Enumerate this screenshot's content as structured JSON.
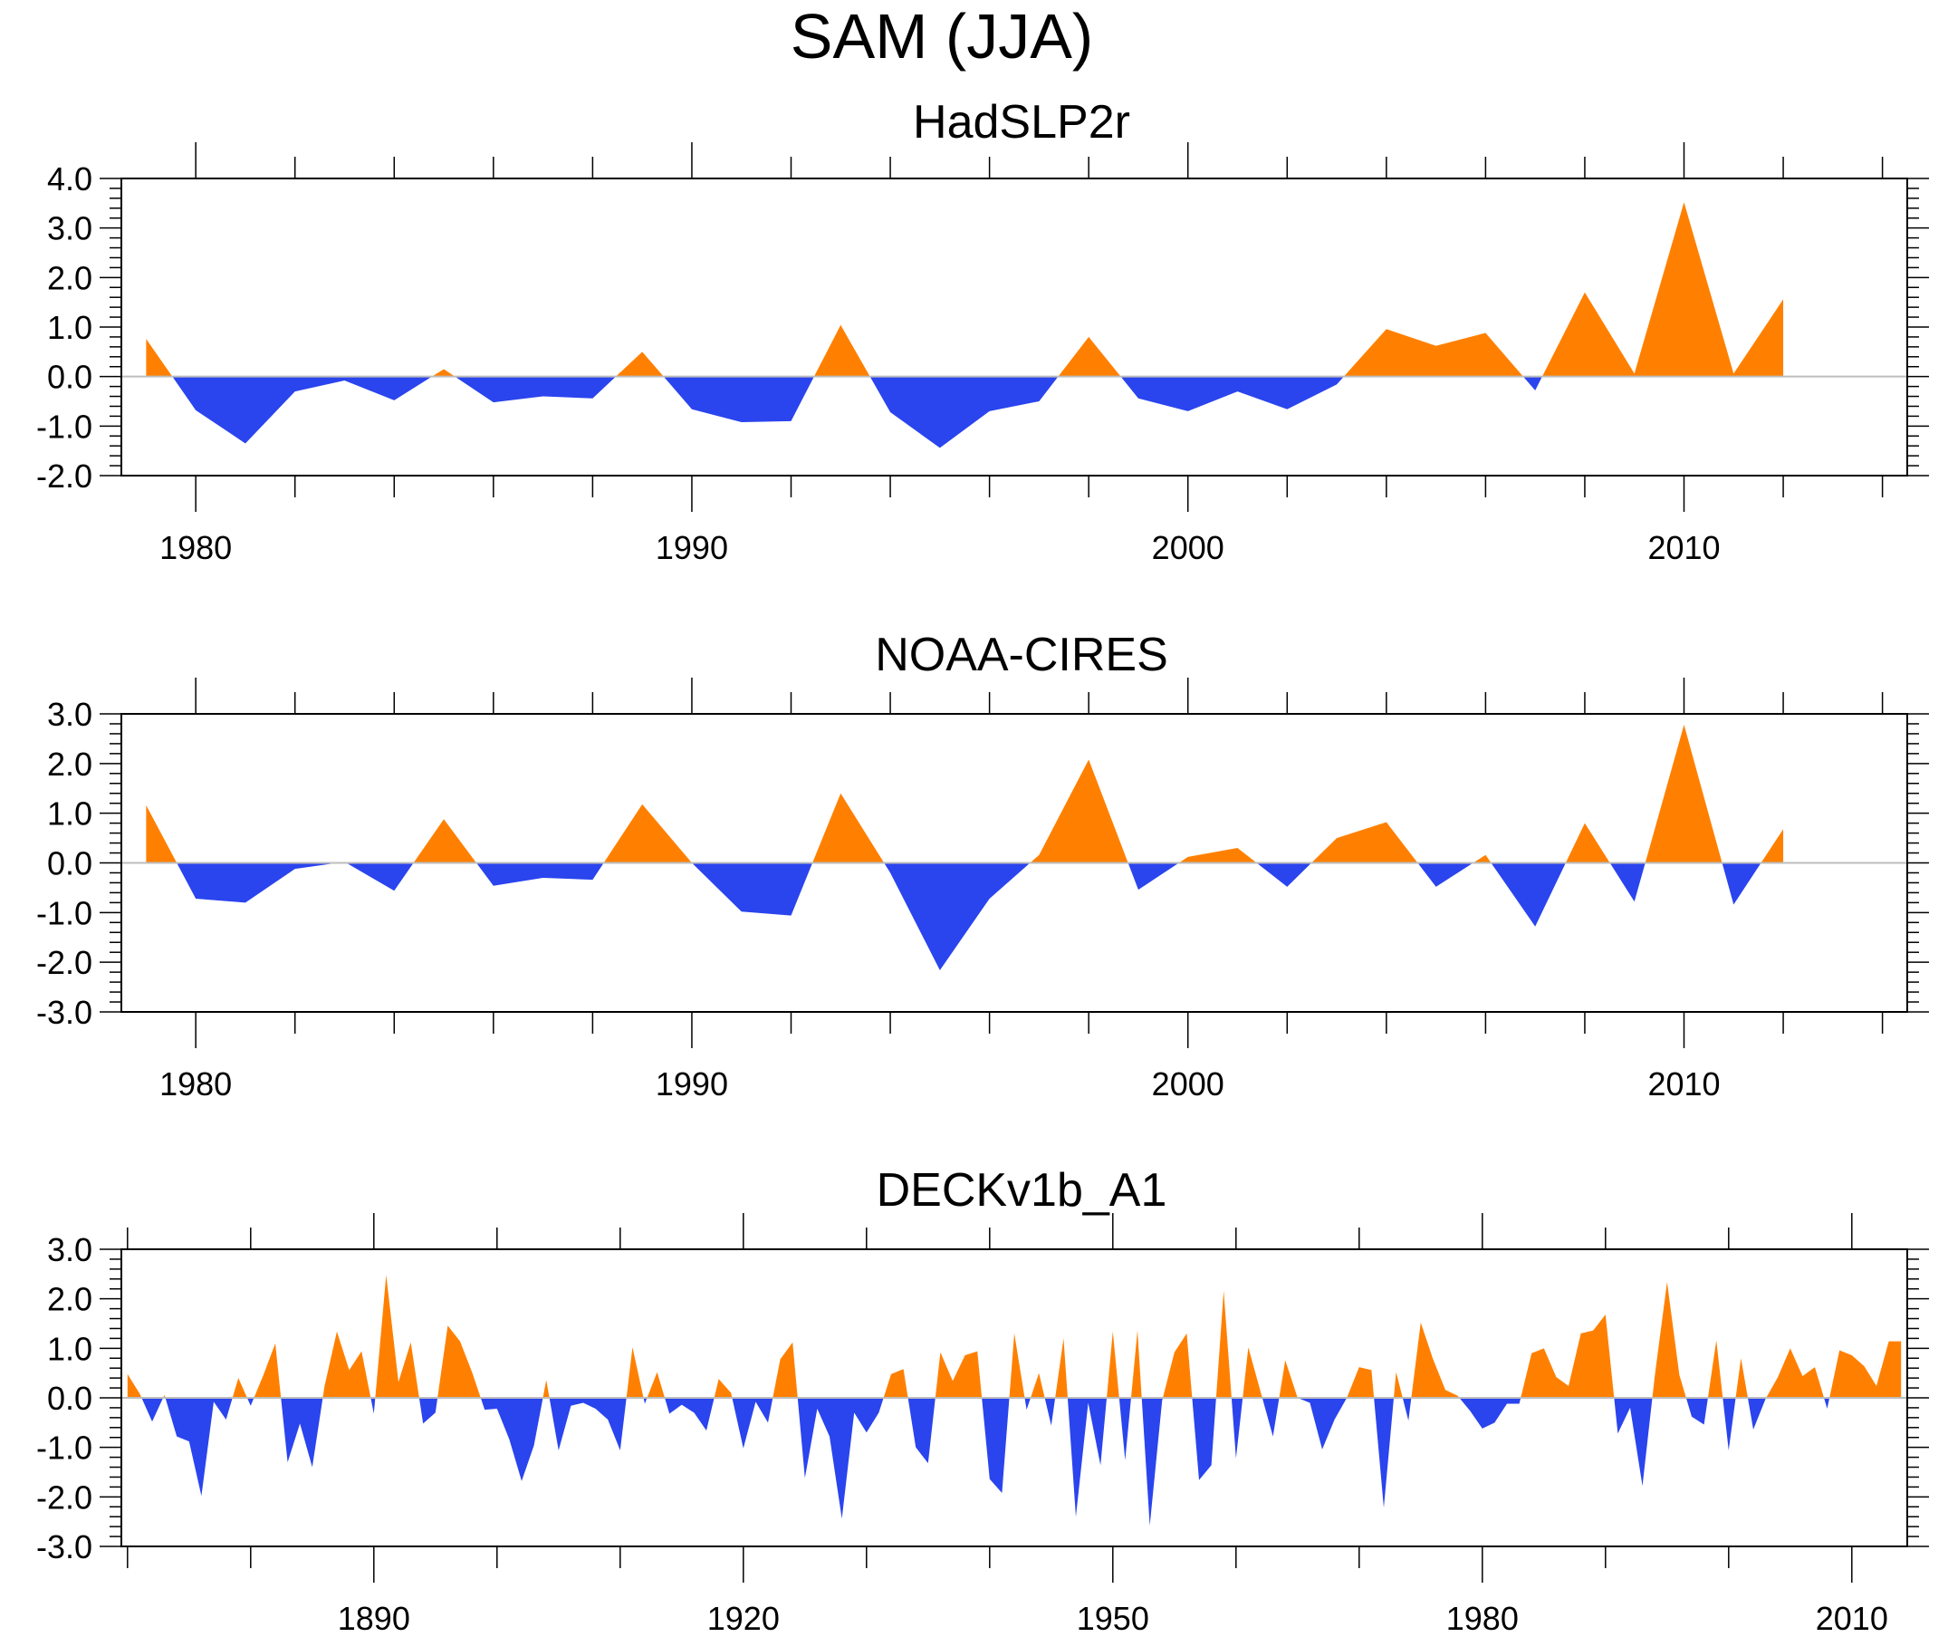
{
  "figure": {
    "title": "SAM (JJA)",
    "colors": {
      "positive": "#ff8000",
      "negative": "#2a44ee",
      "axis": "#000000",
      "zero_line": "#bdbdbd"
    }
  },
  "chart_data": [
    {
      "type": "area",
      "title": "HadSLP2r",
      "xlabel": "",
      "ylabel": "",
      "xlim": [
        1978.5,
        2014.5
      ],
      "ylim": [
        -2.0,
        4.0
      ],
      "xticks": [
        1980,
        1990,
        2000,
        2010
      ],
      "xtick_labels": [
        "1980",
        "1990",
        "2000",
        "2010"
      ],
      "yticks": [
        -2.0,
        -1.0,
        0.0,
        1.0,
        2.0,
        3.0,
        4.0
      ],
      "ytick_labels": [
        "-2.0",
        "-1.0",
        "0.0",
        "1.0",
        "2.0",
        "3.0",
        "4.0"
      ],
      "x_minor_step": 2,
      "y_minor_step": 0.2,
      "grid": false,
      "legend": "none",
      "x": [
        1979,
        1980,
        1981,
        1982,
        1983,
        1984,
        1985,
        1986,
        1987,
        1988,
        1989,
        1990,
        1991,
        1992,
        1993,
        1994,
        1995,
        1996,
        1997,
        1998,
        1999,
        2000,
        2001,
        2002,
        2003,
        2004,
        2005,
        2006,
        2007,
        2008,
        2009,
        2010,
        2011,
        2012
      ],
      "values": [
        0.76,
        -0.68,
        -1.35,
        -0.3,
        -0.08,
        -0.48,
        0.15,
        -0.52,
        -0.4,
        -0.44,
        0.5,
        -0.66,
        -0.92,
        -0.9,
        1.04,
        -0.72,
        -1.44,
        -0.7,
        -0.5,
        0.8,
        -0.44,
        -0.7,
        -0.3,
        -0.66,
        -0.16,
        0.96,
        0.62,
        0.88,
        -0.28,
        1.7,
        0.06,
        3.52,
        0.06,
        1.56
      ]
    },
    {
      "type": "area",
      "title": "NOAA-CIRES",
      "xlabel": "",
      "ylabel": "",
      "xlim": [
        1978.5,
        2014.5
      ],
      "ylim": [
        -3.0,
        3.0
      ],
      "xticks": [
        1980,
        1990,
        2000,
        2010
      ],
      "xtick_labels": [
        "1980",
        "1990",
        "2000",
        "2010"
      ],
      "yticks": [
        -3.0,
        -2.0,
        -1.0,
        0.0,
        1.0,
        2.0,
        3.0
      ],
      "ytick_labels": [
        "-3.0",
        "-2.0",
        "-1.0",
        "0.0",
        "1.0",
        "2.0",
        "3.0"
      ],
      "x_minor_step": 2,
      "y_minor_step": 0.2,
      "grid": false,
      "legend": "none",
      "x": [
        1979,
        1980,
        1981,
        1982,
        1983,
        1984,
        1985,
        1986,
        1987,
        1988,
        1989,
        1990,
        1991,
        1992,
        1993,
        1994,
        1995,
        1996,
        1997,
        1998,
        1999,
        2000,
        2001,
        2002,
        2003,
        2004,
        2005,
        2006,
        2007,
        2008,
        2009,
        2010,
        2011,
        2012
      ],
      "values": [
        1.16,
        -0.72,
        -0.8,
        -0.12,
        0.02,
        -0.56,
        0.88,
        -0.46,
        -0.3,
        -0.34,
        1.18,
        0.0,
        -0.98,
        -1.06,
        1.4,
        -0.2,
        -2.16,
        -0.72,
        0.16,
        2.08,
        -0.54,
        0.12,
        0.3,
        -0.48,
        0.5,
        0.82,
        -0.48,
        0.16,
        -1.28,
        0.8,
        -0.78,
        2.78,
        -0.84,
        0.68
      ]
    },
    {
      "type": "area",
      "title": "DECKv1b_A1",
      "xlabel": "",
      "ylabel": "",
      "xlim": [
        1869.5,
        2014.5
      ],
      "ylim": [
        -3.0,
        3.0
      ],
      "xticks": [
        1890,
        1920,
        1950,
        1980,
        2010
      ],
      "xtick_labels": [
        "1890",
        "1920",
        "1950",
        "1980",
        "2010"
      ],
      "yticks": [
        -3.0,
        -2.0,
        -1.0,
        0.0,
        1.0,
        2.0,
        3.0
      ],
      "ytick_labels": [
        "-3.0",
        "-2.0",
        "-1.0",
        "0.0",
        "1.0",
        "2.0",
        "3.0"
      ],
      "x_minor_step": 10,
      "y_minor_step": 0.2,
      "grid": false,
      "legend": "none",
      "x": [
        1870,
        1871,
        1872,
        1873,
        1874,
        1875,
        1876,
        1877,
        1878,
        1879,
        1880,
        1881,
        1882,
        1883,
        1884,
        1885,
        1886,
        1887,
        1888,
        1889,
        1890,
        1891,
        1892,
        1893,
        1894,
        1895,
        1896,
        1897,
        1898,
        1899,
        1900,
        1901,
        1902,
        1903,
        1904,
        1905,
        1906,
        1907,
        1908,
        1909,
        1910,
        1911,
        1912,
        1913,
        1914,
        1915,
        1916,
        1917,
        1918,
        1919,
        1920,
        1921,
        1922,
        1923,
        1924,
        1925,
        1926,
        1927,
        1928,
        1929,
        1930,
        1931,
        1932,
        1933,
        1934,
        1935,
        1936,
        1937,
        1938,
        1939,
        1940,
        1941,
        1942,
        1943,
        1944,
        1945,
        1946,
        1947,
        1948,
        1949,
        1950,
        1951,
        1952,
        1953,
        1954,
        1955,
        1956,
        1957,
        1958,
        1959,
        1960,
        1961,
        1962,
        1963,
        1964,
        1965,
        1966,
        1967,
        1968,
        1969,
        1970,
        1971,
        1972,
        1973,
        1974,
        1975,
        1976,
        1977,
        1978,
        1979,
        1980,
        1981,
        1982,
        1983,
        1984,
        1985,
        1986,
        1987,
        1988,
        1989,
        1990,
        1991,
        1992,
        1993,
        1994,
        1995,
        1996,
        1997,
        1998,
        1999,
        2000,
        2001,
        2002,
        2003,
        2004,
        2005,
        2006,
        2007,
        2008,
        2009,
        2010,
        2011,
        2012,
        2013,
        2014
      ],
      "values": [
        0.48,
        0.08,
        -0.48,
        0.06,
        -0.78,
        -0.88,
        -1.98,
        -0.08,
        -0.44,
        0.4,
        -0.16,
        0.44,
        1.1,
        -1.3,
        -0.52,
        -1.4,
        0.24,
        1.34,
        0.56,
        0.94,
        -0.32,
        2.48,
        0.32,
        1.12,
        -0.52,
        -0.3,
        1.46,
        1.14,
        0.5,
        -0.24,
        -0.22,
        -0.84,
        -1.68,
        -0.96,
        0.36,
        -1.06,
        -0.16,
        -0.1,
        -0.22,
        -0.44,
        -1.06,
        1.02,
        -0.12,
        0.52,
        -0.32,
        -0.14,
        -0.3,
        -0.66,
        0.38,
        0.1,
        -1.02,
        -0.08,
        -0.5,
        0.78,
        1.12,
        -1.62,
        -0.22,
        -0.78,
        -2.44,
        -0.3,
        -0.7,
        -0.3,
        0.48,
        0.58,
        -1.0,
        -1.32,
        0.92,
        0.34,
        0.86,
        0.94,
        -1.64,
        -1.92,
        1.3,
        -0.24,
        0.5,
        -0.56,
        1.2,
        -2.4,
        -0.1,
        -1.36,
        1.34,
        -1.26,
        1.36,
        -2.58,
        -0.06,
        0.92,
        1.3,
        -1.66,
        -1.36,
        2.16,
        -1.22,
        1.02,
        0.12,
        -0.78,
        0.76,
        0.0,
        -0.1,
        -1.04,
        -0.44,
        0.0,
        0.62,
        0.56,
        -2.22,
        0.52,
        -0.46,
        1.52,
        0.78,
        0.16,
        0.04,
        -0.26,
        -0.62,
        -0.5,
        -0.12,
        -0.12,
        0.9,
        1.0,
        0.42,
        0.24,
        1.3,
        1.36,
        1.68,
        -0.72,
        -0.2,
        -1.78,
        0.44,
        2.34,
        0.46,
        -0.38,
        -0.54,
        1.16,
        -1.06,
        0.8,
        -0.64,
        -0.02,
        0.42,
        1.0,
        0.44,
        0.62,
        -0.22,
        0.96,
        0.86,
        0.64,
        0.24,
        1.14,
        1.14
      ]
    }
  ]
}
